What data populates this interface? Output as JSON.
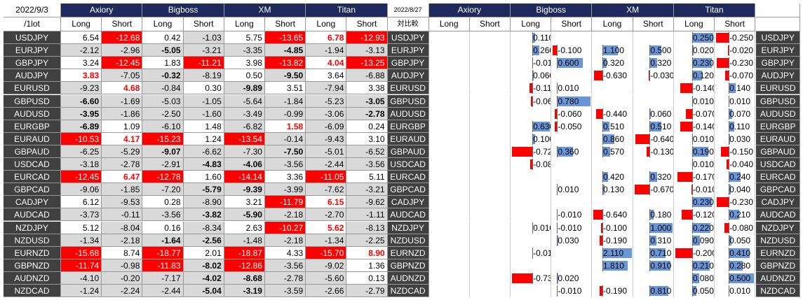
{
  "pairs": [
    "USDJPY",
    "EURJPY",
    "GBPJPY",
    "AUDJPY",
    "EURUSD",
    "GBPUSD",
    "AUDUSD",
    "EURGBP",
    "EURAUD",
    "GBPAUD",
    "USDCAD",
    "EURCAD",
    "GBPCAD",
    "CADJPY",
    "AUDCAD",
    "NZDJPY",
    "NZDUSD",
    "EURNZD",
    "GBPNZD",
    "AUDNZD",
    "NZDCAD"
  ],
  "brokers": [
    "Axiory",
    "Bigboss",
    "XM",
    "Titan"
  ],
  "sides": [
    "Long",
    "Short"
  ],
  "current": {
    "date": "2022/9/3",
    "unit": "/1lot",
    "values": [
      [
        "6.54",
        "-12.68",
        "0.42",
        "-1.03",
        "5.75",
        "-13.65",
        "6.78",
        "-12.93"
      ],
      [
        "-2.12",
        "-2.96",
        "-5.05",
        "-3.21",
        "-3.35",
        "-4.85",
        "-1.94",
        "-3.13"
      ],
      [
        "3.24",
        "-12.45",
        "1.83",
        "-11.21",
        "3.98",
        "-13.82",
        "4.04",
        "-13.25"
      ],
      [
        "3.83",
        "-7.05",
        "-0.32",
        "-8.19",
        "0.50",
        "-9.50",
        "3.64",
        "-6.88"
      ],
      [
        "-9.23",
        "4.68",
        "-0.84",
        "0.30",
        "-9.89",
        "3.51",
        "-7.94",
        "3.38"
      ],
      [
        "-6.60",
        "-1.69",
        "-5.03",
        "-1.05",
        "-5.64",
        "-1.84",
        "-5.23",
        "-3.05"
      ],
      [
        "-3.95",
        "-1.86",
        "-2.50",
        "-1.60",
        "-3.49",
        "-0.99",
        "-3.06",
        "-2.78"
      ],
      [
        "-6.89",
        "1.09",
        "-6.10",
        "1.48",
        "-6.82",
        "1.58",
        "-6.09",
        "0.24"
      ],
      [
        "-10.53",
        "4.17",
        "-15.23",
        "1.24",
        "-13.54",
        "-0.14",
        "-9.43",
        "3.10"
      ],
      [
        "-6.25",
        "-5.29",
        "-9.07",
        "-6.62",
        "-7.30",
        "-7.50",
        "-5.01",
        "-6.52"
      ],
      [
        "-3.18",
        "-2.78",
        "-2.91",
        "-4.83",
        "-4.06",
        "-3.56",
        "-2.44",
        "-3.56"
      ],
      [
        "-12.45",
        "6.47",
        "-12.78",
        "1.60",
        "-14.14",
        "3.36",
        "-11.05",
        "5.11"
      ],
      [
        "-9.06",
        "-1.85",
        "-7.20",
        "-5.79",
        "-9.39",
        "-3.99",
        "-7.62",
        "-3.21"
      ],
      [
        "6.12",
        "-9.53",
        "0.28",
        "-8.90",
        "3.21",
        "-11.79",
        "6.15",
        "-9.62"
      ],
      [
        "-3.73",
        "-0.11",
        "-3.56",
        "-3.82",
        "-5.90",
        "-2.18",
        "-2.70",
        "-1.11"
      ],
      [
        "5.12",
        "-8.04",
        "0.16",
        "-8.34",
        "2.63",
        "-10.27",
        "5.62",
        "-8.13"
      ],
      [
        "-1.34",
        "-2.18",
        "-1.64",
        "-2.56",
        "-1.48",
        "-2.18",
        "-1.34",
        "-2.25"
      ],
      [
        "-15.68",
        "8.74",
        "-18.77",
        "2.01",
        "-18.87",
        "4.33",
        "-15.70",
        "8.90"
      ],
      [
        "-11.74",
        "-0.98",
        "-11.83",
        "-8.02",
        "-12.86",
        "-3.56",
        "-9.02",
        "1.36"
      ],
      [
        "-4.10",
        "-0.20",
        "-7.17",
        "-4.02",
        "-8.68",
        "-2.78",
        "-5.60",
        "0.13"
      ],
      [
        "-1.24",
        "-2.24",
        "-2.44",
        "-5.04",
        "-3.19",
        "-3.59",
        "-2.66",
        "-2.79"
      ]
    ]
  },
  "comparison": {
    "date": "2022/8/27",
    "label": "対比較",
    "values": [
      [
        null,
        null,
        "0.110",
        null,
        null,
        null,
        "0.250",
        "-0.250"
      ],
      [
        null,
        null,
        "0.260",
        "-0.100",
        "1.100",
        "0.500",
        "0.020",
        "-0.020"
      ],
      [
        null,
        null,
        "-0.010",
        "0.600",
        "0.320",
        "0.320",
        "0.230",
        "-0.230"
      ],
      [
        null,
        null,
        "0.060",
        null,
        "-0.630",
        "-0.030",
        "0.120",
        "-0.070"
      ],
      [
        null,
        null,
        "-0.110",
        "0.010",
        null,
        null,
        "-0.140",
        "0.140"
      ],
      [
        null,
        null,
        "-0.060",
        "0.780",
        null,
        null,
        "0.010",
        "0.010"
      ],
      [
        null,
        null,
        null,
        "-0.060",
        "-0.440",
        "0.060",
        "-0.070",
        "0.070"
      ],
      [
        null,
        null,
        "0.630",
        "-0.050",
        "0.510",
        "0.510",
        "-0.140",
        "0.110"
      ],
      [
        null,
        null,
        "0.100",
        null,
        "0.860",
        "-0.640",
        "0.010",
        "0.030"
      ],
      [
        null,
        null,
        "-0.720",
        "0.360",
        "0.570",
        "-0.130",
        "0.190",
        "-0.150"
      ],
      [
        null,
        null,
        "-0.080",
        null,
        null,
        null,
        "0.010",
        "-0.040"
      ],
      [
        null,
        null,
        null,
        null,
        "0.420",
        "0.320",
        "-0.170",
        "0.240"
      ],
      [
        null,
        null,
        null,
        "0.010",
        "0.130",
        "-0.670",
        "-0.010",
        "0.040"
      ],
      [
        null,
        null,
        null,
        null,
        null,
        null,
        "0.230",
        "-0.230"
      ],
      [
        null,
        null,
        null,
        "-0.010",
        "-0.640",
        "0.180",
        "-0.120",
        "0.210"
      ],
      [
        null,
        null,
        "0.010",
        "-0.010",
        "-0.100",
        "1.000",
        "0.220",
        "-0.080"
      ],
      [
        null,
        null,
        null,
        "0.030",
        "-0.190",
        "0.310",
        "0.090",
        "0.050"
      ],
      [
        null,
        null,
        "-0.010",
        null,
        "2.110",
        "0.710",
        "-0.200",
        "0.410"
      ],
      [
        null,
        null,
        null,
        null,
        "1.810",
        "0.910",
        "0.210",
        "0.280"
      ],
      [
        null,
        null,
        "-0.730",
        "0.020",
        null,
        null,
        "0.080",
        "0.500"
      ],
      [
        null,
        null,
        null,
        "-0.010",
        "-0.190",
        "0.810",
        "0.050",
        "0.010"
      ]
    ]
  }
}
